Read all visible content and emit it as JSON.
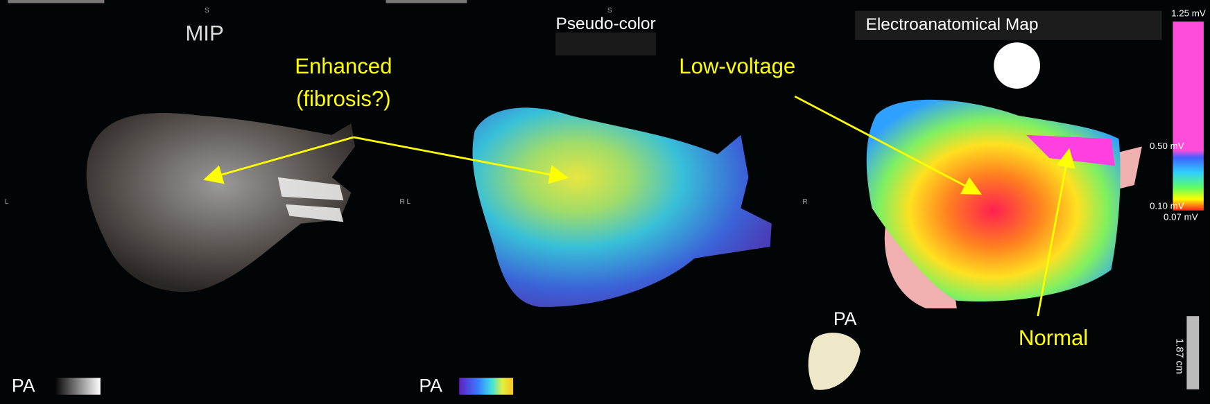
{
  "panels": [
    {
      "title": "MIP",
      "orientation": "PA",
      "top_marker": "S",
      "side_marker": "L"
    },
    {
      "title": "Pseudo-color",
      "orientation": "PA",
      "top_marker": "S",
      "side_marker": "R L"
    },
    {
      "title": "Electroanatomical Map",
      "orientation": "PA",
      "side_marker": "R"
    }
  ],
  "annotations": {
    "enhanced": [
      "Enhanced",
      "(fibrosis?)"
    ],
    "low_voltage": "Low-voltage",
    "normal": "Normal"
  },
  "scale": {
    "labels": [
      "1.25 mV",
      "0.50 mV",
      "0.10 mV",
      "0.07 mV"
    ],
    "ruler": "1.87 cm"
  }
}
